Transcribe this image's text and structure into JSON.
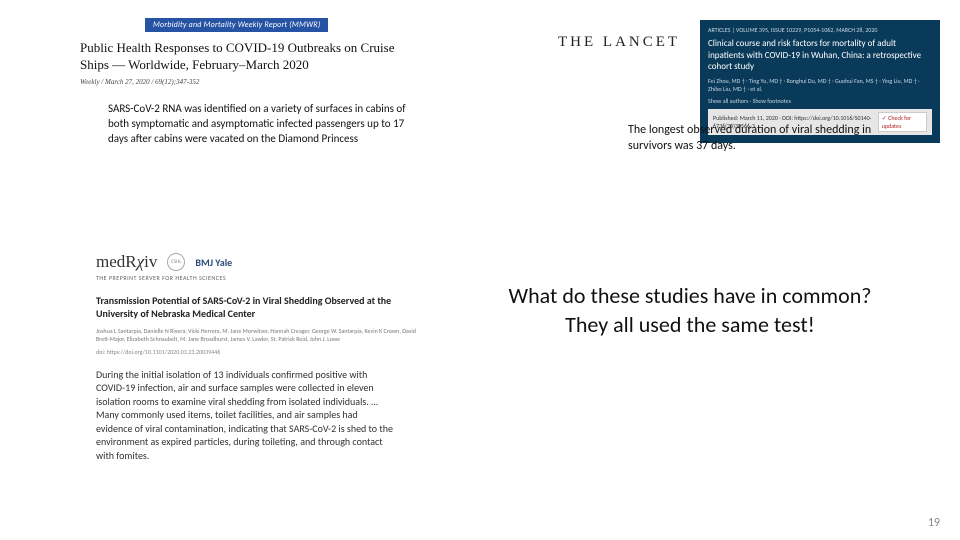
{
  "mmwr": {
    "badge": "Morbidity and Mortality Weekly Report (MMWR)",
    "title": "Public Health Responses to COVID-19 Outbreaks on Cruise Ships — Worldwide, February–March 2020",
    "subline": "Weekly / March 27, 2020 / 69(12);347-352",
    "excerpt": "SARS-CoV-2 RNA was identified on a variety of surfaces in cabins of both symptomatic and asymptomatic infected passengers up to 17 days after cabins were vacated on the Diamond Princess",
    "badge_bg": "#2753a4"
  },
  "lancet": {
    "logo": "THE LANCET",
    "journalline": "ARTICLES | VOLUME 395, ISSUE 10229, P1054-1062, MARCH 28, 2020",
    "title": "Clinical course and risk factors for mortality of adult inpatients with COVID-19 in Wuhan, China: a retrospective cohort study",
    "authors": "Fei Zhou, MD † · Ting Yu, MD † · Ronghui Du, MD † · Guohui Fan, MS † · Ying Liu, MD † · Zhibo Liu, MD † · et al.",
    "links": "Show all authors · Show footnotes",
    "pubinfo": "Published: March 11, 2020 · DOI: https://doi.org/10.1016/S0140-6736(20)30566-3",
    "updates": "Check for updates",
    "box_bg": "#0a3a5a",
    "excerpt": "The longest observed duration of viral shedding in survivors was 37 days."
  },
  "medrxiv": {
    "logo_prefix": "med",
    "logo_r": "R",
    "logo_chi": "χ",
    "logo_suffix": "iv",
    "bmj": "BMJ Yale",
    "tagline": "THE PREPRINT SERVER FOR HEALTH SCIENCES",
    "title": "Transmission Potential of SARS-CoV-2 in Viral Shedding Observed at the University of Nebraska Medical Center",
    "authors": "Joshua L Santarpia, Danielle N Rivera, Vicki Herrera, M. Jane Morwitzer, Hannah Creager, George W. Santarpia, Kevin K Crown, David Brett-Major, Elizabeth Schnaubelt, M. Jane Broadhurst, James V. Lawler, St. Patrick Reid, John J. Lowe",
    "doi": "doi: https://doi.org/10.1101/2020.03.23.20039446",
    "excerpt": "During the initial isolation of 13 individuals confirmed positive with COVID-19 infection, air and surface samples were collected in eleven isolation rooms to examine viral shedding from isolated individuals. …Many commonly used items, toilet facilities, and air samples had evidence of viral contamination, indicating that SARS-CoV-2 is shed to the environment as expired particles, during toileting, and through contact with fomites."
  },
  "question": {
    "line1": "What do these studies have in common?",
    "line2": "They all used the same test!"
  },
  "page_number": "19",
  "colors": {
    "background": "#ffffff",
    "text": "#111111"
  }
}
